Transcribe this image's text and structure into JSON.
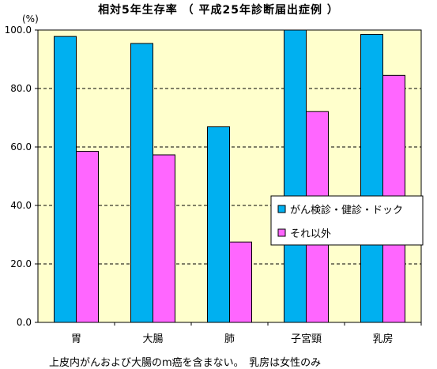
{
  "chart_data": {
    "type": "bar",
    "title": "相対5年生存率 （ 平成25年診断届出症例 ）",
    "ylabel": "(%)",
    "categories": [
      "胃",
      "大腸",
      "肺",
      "子宮頸",
      "乳房"
    ],
    "series": [
      {
        "name": "がん検診・健診・ドック",
        "color": "#00b0f0",
        "values": [
          97.8,
          95.4,
          66.9,
          100.0,
          98.5
        ]
      },
      {
        "name": "それ以外",
        "color": "#ff66ff",
        "values": [
          58.5,
          57.3,
          27.5,
          72.1,
          84.5
        ]
      }
    ],
    "ylim": [
      0,
      100
    ],
    "yticks": [
      0,
      20,
      40,
      60,
      80,
      100
    ],
    "ytick_labels": [
      "0.0",
      "20.0",
      "40.0",
      "60.0",
      "80.0",
      "100.0"
    ],
    "grid": true,
    "legend_position": "right",
    "plot_background": "#ffffcc"
  },
  "footnote": "上皮内がんおよび大腸のm癌を含まない。　乳房は女性のみ"
}
